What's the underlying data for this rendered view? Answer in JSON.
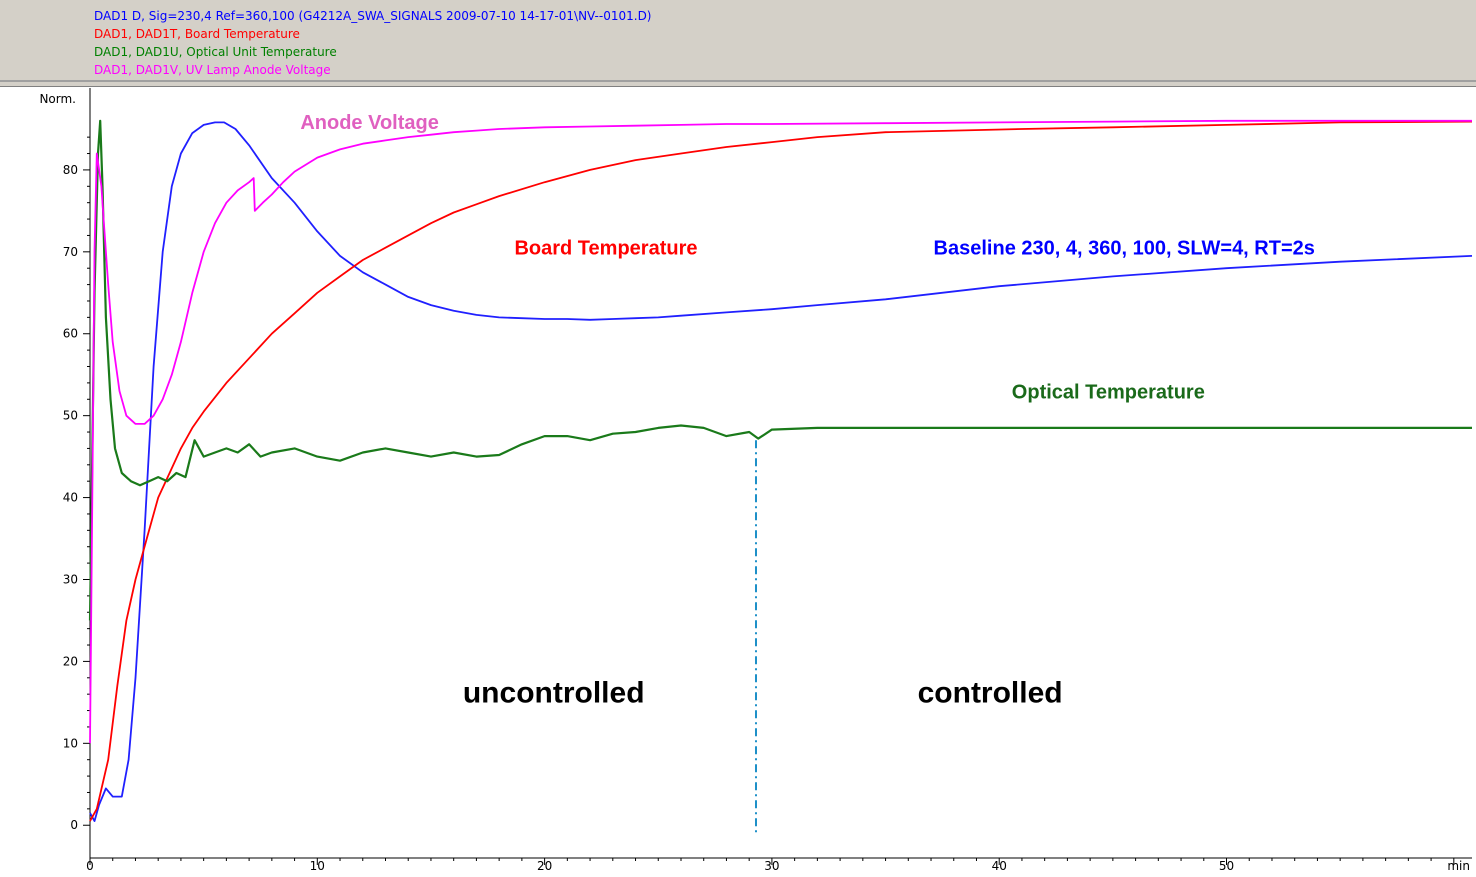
{
  "legend": [
    {
      "text": "DAD1 D, Sig=230,4 Ref=360,100 (G4212A_SWA_SIGNALS 2009-07-10 14-17-01\\NV--0101.D)",
      "color": "#0000ff"
    },
    {
      "text": "DAD1, DAD1T, Board Temperature",
      "color": "#ff0000"
    },
    {
      "text": "DAD1, DAD1U, Optical Unit Temperature",
      "color": "#008000"
    },
    {
      "text": "DAD1, DAD1V, UV Lamp Anode Voltage",
      "color": "#ff00ff"
    }
  ],
  "chart_data": {
    "type": "line",
    "xlabel": "min",
    "ylabel": "Norm.",
    "xlim": [
      0,
      60.8
    ],
    "ylim": [
      -4,
      90
    ],
    "xticks": [
      0,
      10,
      20,
      30,
      40,
      50
    ],
    "yticks": [
      0,
      10,
      20,
      30,
      40,
      50,
      60,
      70,
      80
    ],
    "series": [
      {
        "name": "DAD1 D, Sig=230,4 Ref=360,100",
        "color": "#2020ff",
        "x": [
          0,
          0.2,
          0.4,
          0.7,
          1.0,
          1.4,
          1.7,
          2.0,
          2.4,
          2.8,
          3.2,
          3.6,
          4.0,
          4.5,
          5.0,
          5.5,
          5.9,
          6.4,
          7.0,
          8.0,
          9.0,
          10.0,
          11.0,
          12.0,
          13.0,
          14.0,
          15.0,
          16.0,
          17.0,
          18.0,
          19.0,
          20.0,
          21.0,
          22.0,
          23.0,
          24.0,
          25.0,
          26.0,
          28.0,
          30.0,
          32.0,
          35.0,
          40.0,
          45.0,
          50.0,
          55.0,
          60.8
        ],
        "y": [
          1.5,
          0.5,
          2.5,
          4.5,
          3.5,
          3.5,
          8.0,
          18.0,
          36.0,
          56.0,
          70.0,
          78.0,
          82.0,
          84.5,
          85.5,
          85.8,
          85.8,
          85.0,
          83.0,
          79.0,
          76.0,
          72.5,
          69.5,
          67.5,
          66.0,
          64.5,
          63.5,
          62.8,
          62.3,
          62.0,
          61.9,
          61.8,
          61.8,
          61.7,
          61.8,
          61.9,
          62.0,
          62.2,
          62.6,
          63.0,
          63.5,
          64.2,
          65.8,
          67.0,
          68.0,
          68.8,
          69.5
        ]
      },
      {
        "name": "Board Temperature",
        "color": "#ff0000",
        "x": [
          0,
          0.3,
          0.8,
          1.2,
          1.6,
          2.0,
          2.5,
          3.0,
          3.5,
          4.0,
          4.5,
          5.0,
          6.0,
          7.0,
          8.0,
          9.0,
          10.0,
          11.0,
          12.0,
          13.0,
          14.0,
          15.0,
          16.0,
          17.0,
          18.0,
          20.0,
          22.0,
          24.0,
          26.0,
          28.0,
          30.0,
          32.0,
          35.0,
          38.0,
          41.0,
          45.0,
          50.0,
          55.0,
          60.8
        ],
        "y": [
          0.5,
          2.0,
          8.0,
          17.0,
          25.0,
          30.0,
          35.0,
          40.0,
          43.0,
          46.0,
          48.5,
          50.5,
          54.0,
          57.0,
          60.0,
          62.5,
          65.0,
          67.0,
          69.0,
          70.5,
          72.0,
          73.5,
          74.8,
          75.8,
          76.8,
          78.5,
          80.0,
          81.2,
          82.0,
          82.8,
          83.4,
          84.0,
          84.6,
          84.8,
          85.0,
          85.2,
          85.5,
          85.8,
          85.9
        ]
      },
      {
        "name": "Optical Temperature",
        "color": "#1a7a1a",
        "x": [
          0,
          0.2,
          0.35,
          0.45,
          0.55,
          0.7,
          0.9,
          1.1,
          1.4,
          1.8,
          2.2,
          2.6,
          3.0,
          3.4,
          3.8,
          4.2,
          4.6,
          5.0,
          5.5,
          6.0,
          6.5,
          7.0,
          7.5,
          8.0,
          9.0,
          10.0,
          11.0,
          12.0,
          13.0,
          14.0,
          15.0,
          16.0,
          17.0,
          18.0,
          19.0,
          20.0,
          21.0,
          22.0,
          23.0,
          24.0,
          25.0,
          26.0,
          27.0,
          28.0,
          29.0,
          29.4,
          30.0,
          32.0,
          35.0,
          40.0,
          45.0,
          50.0,
          55.0,
          60.8
        ],
        "y": [
          25.0,
          65.0,
          82.0,
          86.0,
          78.0,
          62.0,
          52.0,
          46.0,
          43.0,
          42.0,
          41.5,
          42.0,
          42.5,
          42.0,
          43.0,
          42.5,
          47.0,
          45.0,
          45.5,
          46.0,
          45.5,
          46.5,
          45.0,
          45.5,
          46.0,
          45.0,
          44.5,
          45.5,
          46.0,
          45.5,
          45.0,
          45.5,
          45.0,
          45.2,
          46.5,
          47.5,
          47.5,
          47.0,
          47.8,
          48.0,
          48.5,
          48.8,
          48.5,
          47.5,
          48.0,
          47.2,
          48.3,
          48.5,
          48.5,
          48.5,
          48.5,
          48.5,
          48.5,
          48.5
        ]
      },
      {
        "name": "Anode Voltage",
        "color": "#ff00ff",
        "x": [
          0,
          0.1,
          0.2,
          0.3,
          0.4,
          0.5,
          0.6,
          0.8,
          1.0,
          1.3,
          1.6,
          2.0,
          2.4,
          2.8,
          3.2,
          3.6,
          4.0,
          4.5,
          5.0,
          5.5,
          6.0,
          6.5,
          7.0,
          7.2,
          7.25,
          7.6,
          8.0,
          8.5,
          9.0,
          10.0,
          11.0,
          12.0,
          13.0,
          14.0,
          15.0,
          16.0,
          17.0,
          18.0,
          20.0,
          22.0,
          24.0,
          26.0,
          28.0,
          30.0,
          35.0,
          40.0,
          45.0,
          50.0,
          55.0,
          60.8
        ],
        "y": [
          10.0,
          40.0,
          70.0,
          82.0,
          80.0,
          78.0,
          74.0,
          66.0,
          59.0,
          53.0,
          50.0,
          49.0,
          49.0,
          50.0,
          52.0,
          55.0,
          59.0,
          65.0,
          70.0,
          73.5,
          76.0,
          77.5,
          78.5,
          79.0,
          75.0,
          76.0,
          77.0,
          78.5,
          79.8,
          81.5,
          82.5,
          83.2,
          83.6,
          84.0,
          84.3,
          84.6,
          84.8,
          85.0,
          85.2,
          85.3,
          85.4,
          85.5,
          85.6,
          85.6,
          85.7,
          85.8,
          85.9,
          86.0,
          86.0,
          86.0
        ]
      }
    ],
    "marker_line": {
      "x": 29.3,
      "y_from": 47.0,
      "y_to": -1.0,
      "color": "#1e90c8"
    },
    "annotations": [
      {
        "id": "anode-voltage-label",
        "text": "Anode Voltage",
        "color": "#e060c0",
        "x": 12.3,
        "y": 85.0,
        "size": 20
      },
      {
        "id": "board-temperature-label",
        "text": "Board Temperature",
        "color": "#ff0000",
        "x": 22.7,
        "y": 69.7,
        "size": 20
      },
      {
        "id": "baseline-label",
        "text": "Baseline  230, 4, 360, 100, SLW=4, RT=2s",
        "color": "#0000ff",
        "x": 45.5,
        "y": 69.7,
        "size": 20
      },
      {
        "id": "optical-temperature-label",
        "text": "Optical Temperature",
        "color": "#1a6a1a",
        "x": 44.8,
        "y": 52.1,
        "size": 20
      },
      {
        "id": "uncontrolled-label",
        "text": "uncontrolled",
        "color": "#000000",
        "x": 20.4,
        "y": 15.0,
        "size": 30
      },
      {
        "id": "controlled-label",
        "text": "controlled",
        "color": "#000000",
        "x": 39.6,
        "y": 15.0,
        "size": 30
      }
    ]
  }
}
